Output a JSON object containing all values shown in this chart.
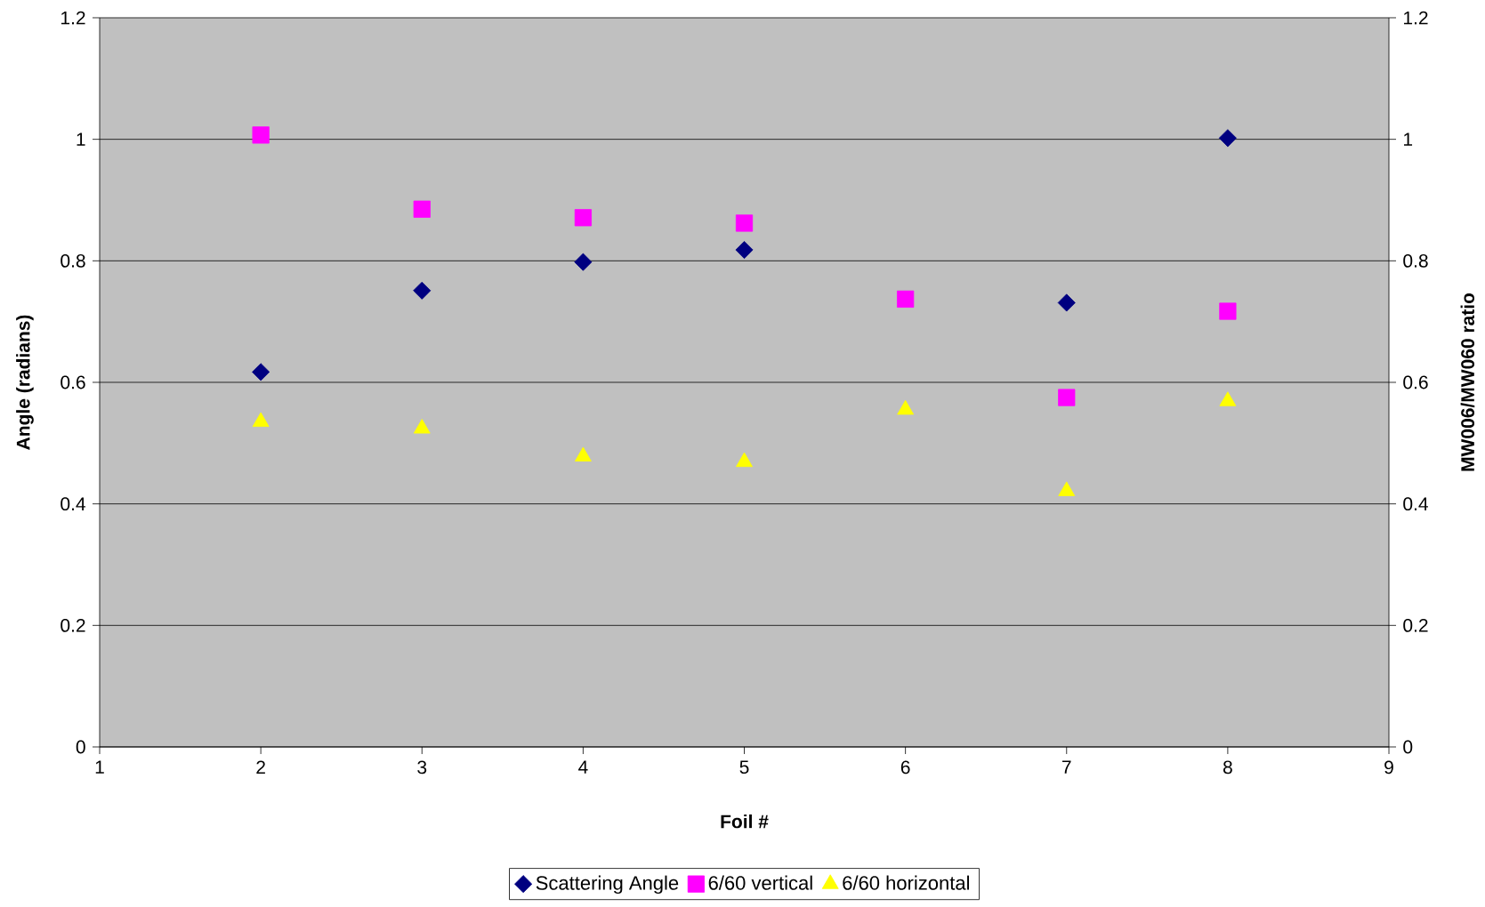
{
  "chart_data": {
    "type": "scatter",
    "xlabel": "Foil #",
    "ylabel": "Angle (radians)",
    "y2label": "MW006/MW060 ratio",
    "xlim": [
      1,
      9
    ],
    "xticks": [
      1,
      2,
      3,
      4,
      5,
      6,
      7,
      8,
      9
    ],
    "ylim": [
      0,
      1.2
    ],
    "yticks": [
      0,
      0.2,
      0.4,
      0.6,
      0.8,
      1,
      1.2
    ],
    "y2lim": [
      0,
      1.2
    ],
    "y2ticks": [
      0,
      0.2,
      0.4,
      0.6,
      0.8,
      1,
      1.2
    ],
    "grid": "y",
    "legend": "bottom",
    "series": [
      {
        "name": "Scattering Angle",
        "color": "#000080",
        "marker": "diamond",
        "x": [
          2,
          3,
          4,
          5,
          7,
          8
        ],
        "values": [
          0.617,
          0.751,
          0.798,
          0.818,
          0.731,
          1.002
        ]
      },
      {
        "name": "6/60 vertical",
        "color": "#ff00ff",
        "marker": "square",
        "axis": "y2",
        "x": [
          2,
          3,
          4,
          5,
          6,
          7,
          8
        ],
        "values": [
          1.007,
          0.885,
          0.871,
          0.862,
          0.737,
          0.575,
          0.717
        ]
      },
      {
        "name": "6/60 horizontal",
        "color": "#ffff00",
        "marker": "triangle",
        "axis": "y2",
        "x": [
          2,
          3,
          4,
          5,
          6,
          7,
          8
        ],
        "values": [
          0.535,
          0.524,
          0.478,
          0.469,
          0.555,
          0.421,
          0.569
        ]
      }
    ]
  }
}
